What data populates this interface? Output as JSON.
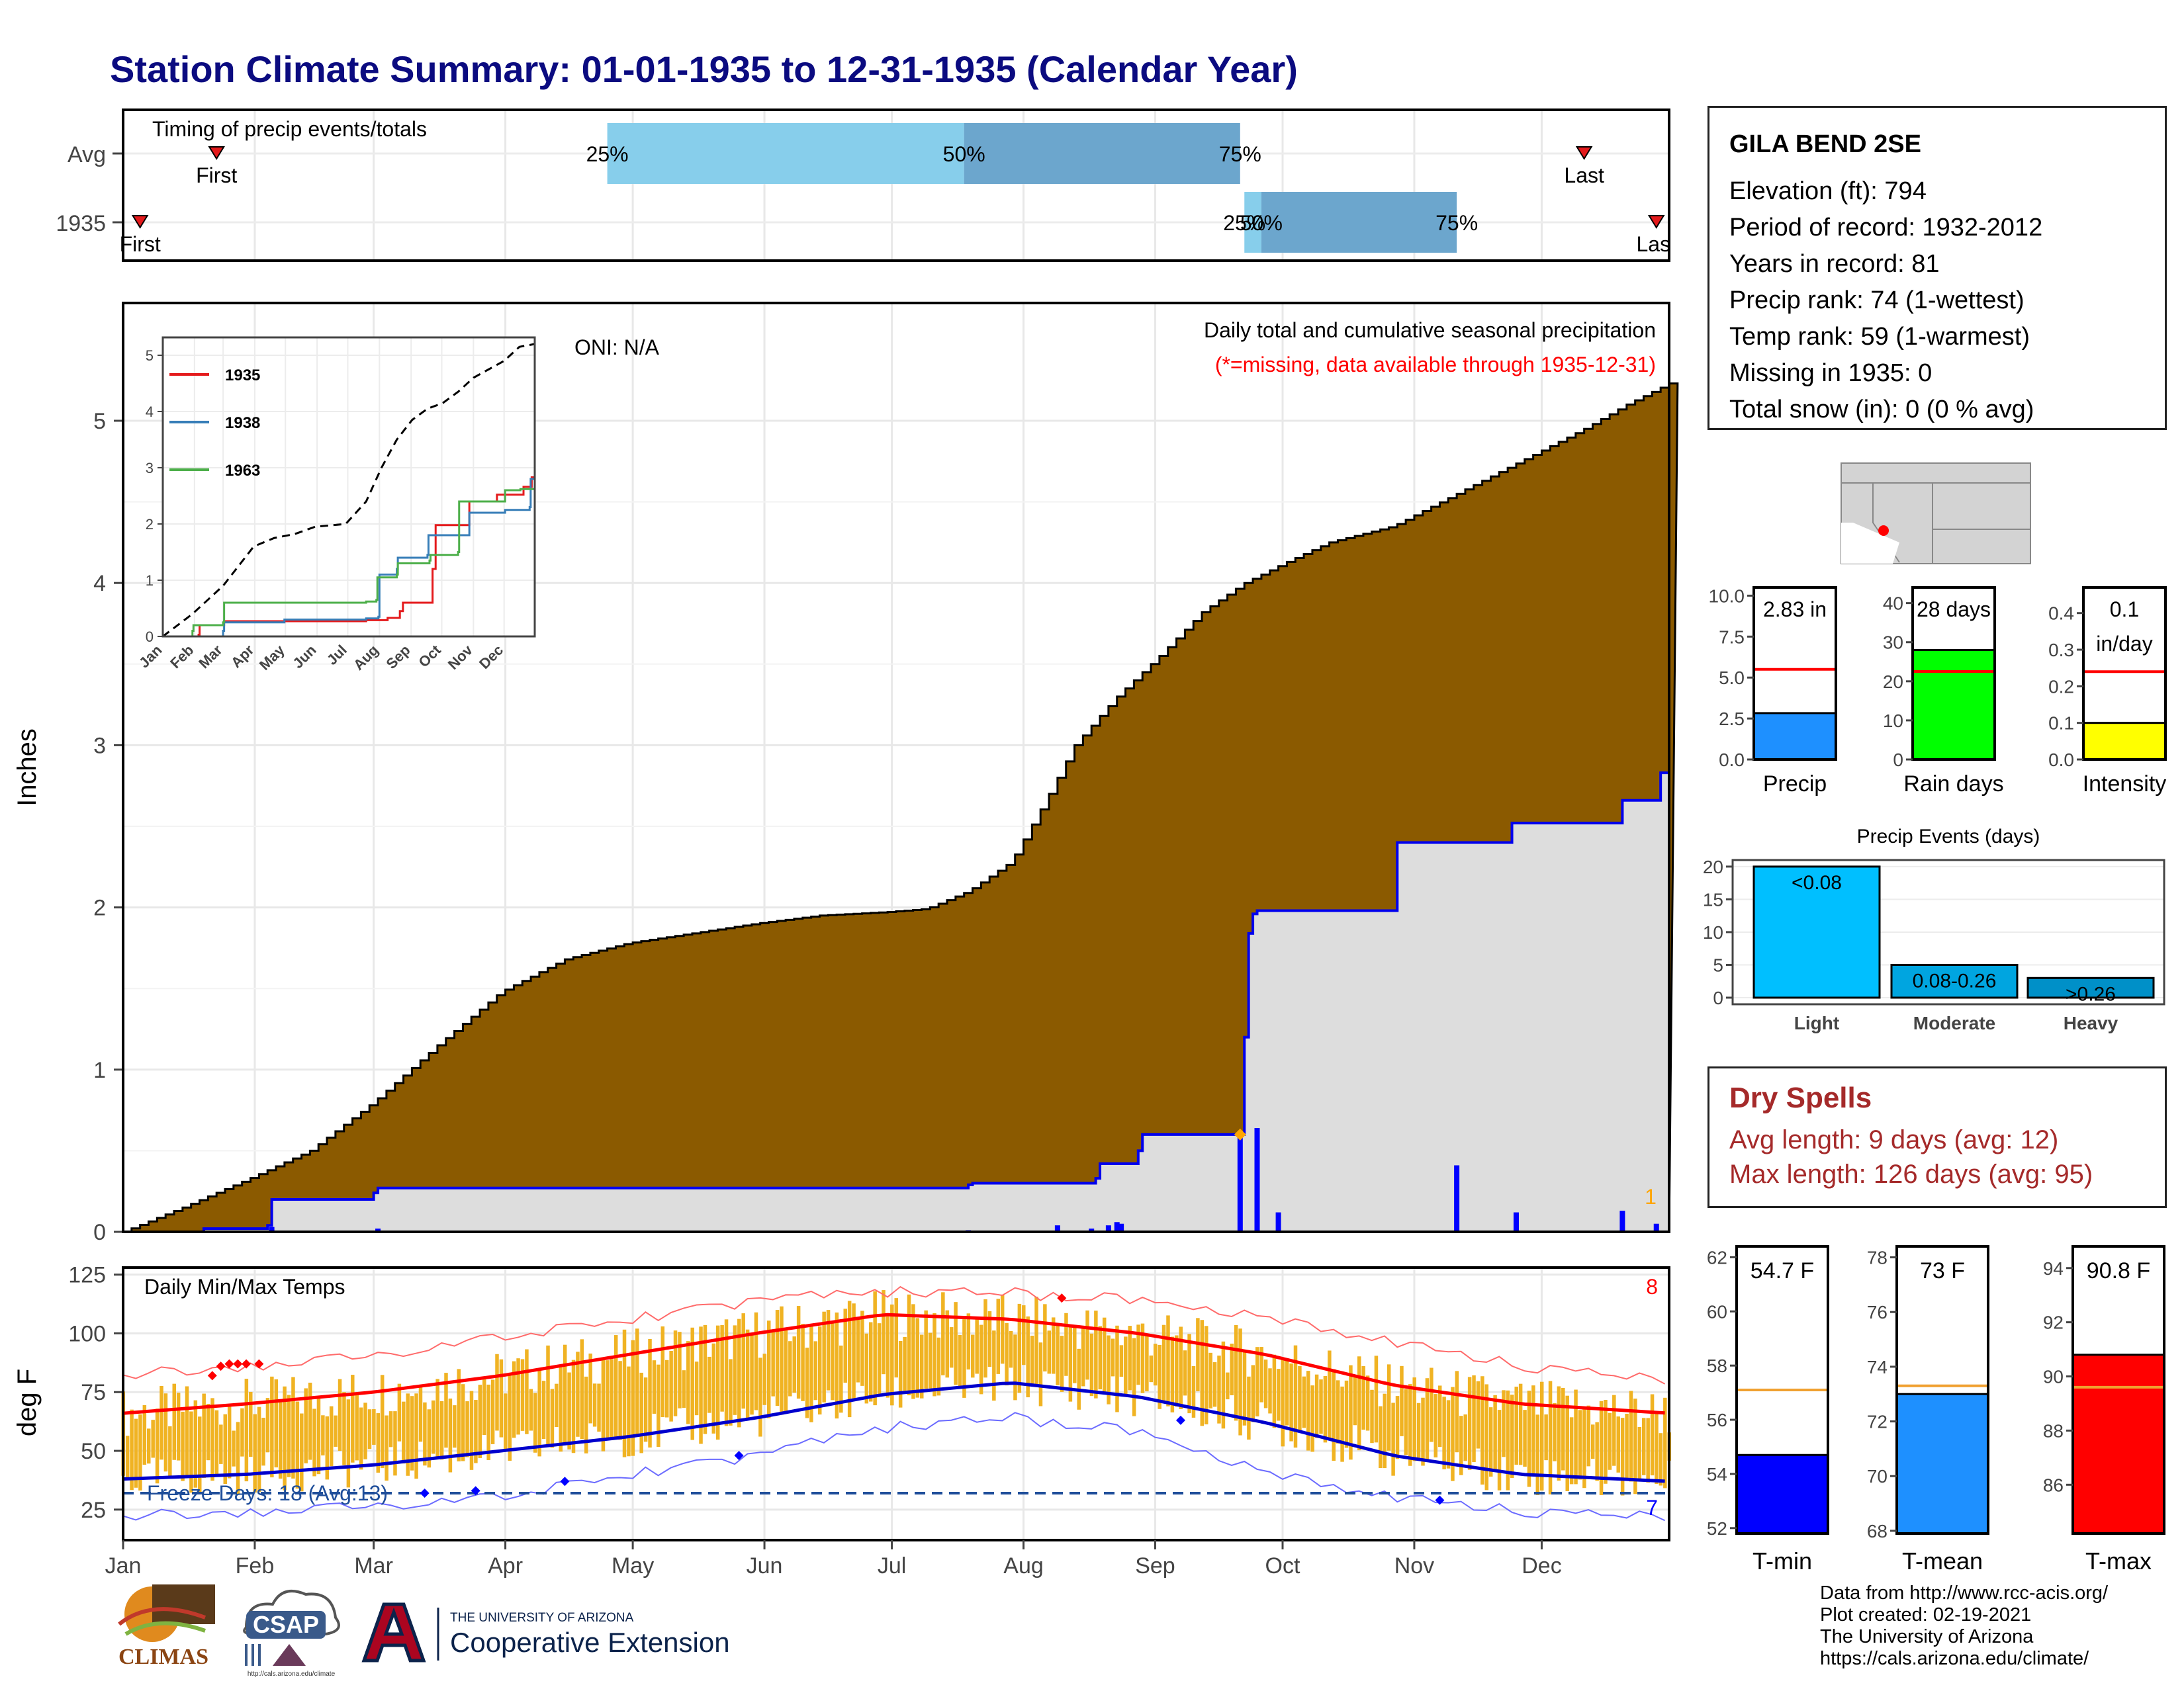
{
  "title": "Station Climate Summary: 01-01-1935 to 12-31-1935 (Calendar Year)",
  "timing": {
    "label": "Timing of precip events/totals",
    "rows": [
      {
        "name": "Avg",
        "first_doy": 23,
        "last_doy": 345,
        "p25_doy": 115,
        "p50_doy": 199,
        "p75_doy": 264,
        "first_label": "First",
        "last_label": "Last",
        "p25_label": "25%",
        "p50_label": "50%",
        "p75_label": "75%"
      },
      {
        "name": "1935",
        "first_doy": 5,
        "last_doy": 362,
        "p25_doy": 265,
        "p50_doy": 269,
        "p75_doy": 315,
        "first_label": "First",
        "last_label": "Last",
        "p25_label": "25%",
        "p50_label": "50%",
        "p75_label": "75%"
      }
    ]
  },
  "months": [
    "Jan",
    "Feb",
    "Mar",
    "Apr",
    "May",
    "Jun",
    "Jul",
    "Aug",
    "Sep",
    "Oct",
    "Nov",
    "Dec"
  ],
  "precip": {
    "ylabel": "Inches",
    "title_line1": "Daily total and cumulative seasonal precipitation",
    "title_line2": "(*=missing, data available through 1935-12-31)",
    "oni": "ONI: N/A",
    "count_label": "1",
    "y_ticks": [
      "0",
      "1",
      "2",
      "3",
      "4",
      "5"
    ]
  },
  "chart_data": [
    {
      "type": "area",
      "name": "cumulative precipitation",
      "units": "inches",
      "xlim": [
        1,
        365
      ],
      "ylim": [
        0,
        5.6
      ],
      "series": [
        {
          "name": "Average cumulative (max envelope)",
          "x": [
            1,
            15,
            30,
            45,
            60,
            75,
            90,
            105,
            120,
            135,
            150,
            165,
            180,
            190,
            200,
            210,
            218,
            225,
            235,
            245,
            255,
            265,
            275,
            285,
            300,
            315,
            330,
            345,
            355,
            365
          ],
          "values": [
            0,
            0.15,
            0.32,
            0.5,
            0.8,
            1.15,
            1.48,
            1.68,
            1.78,
            1.84,
            1.9,
            1.95,
            1.97,
            1.99,
            2.1,
            2.28,
            2.65,
            3.0,
            3.3,
            3.55,
            3.82,
            4.0,
            4.13,
            4.25,
            4.35,
            4.55,
            4.75,
            4.95,
            5.1,
            5.23
          ]
        },
        {
          "name": "1935",
          "x": [
            1,
            20,
            35,
            36,
            60,
            61,
            200,
            201,
            230,
            231,
            240,
            241,
            264,
            265,
            266,
            267,
            268,
            300,
            301,
            327,
            328,
            353,
            354,
            362,
            363,
            365
          ],
          "values": [
            0,
            0.02,
            0.04,
            0.2,
            0.24,
            0.27,
            0.29,
            0.3,
            0.33,
            0.42,
            0.5,
            0.6,
            0.6,
            1.2,
            1.84,
            1.96,
            1.98,
            1.98,
            2.4,
            2.4,
            2.52,
            2.52,
            2.66,
            2.66,
            2.83,
            2.83
          ]
        }
      ]
    },
    {
      "type": "bar",
      "name": "daily precipitation 1935",
      "units": "inches",
      "x": [
        36,
        61,
        200,
        221,
        229,
        233,
        235,
        236,
        264,
        268,
        273,
        315,
        329,
        354,
        362
      ],
      "values": [
        0.03,
        0.02,
        0.01,
        0.04,
        0.02,
        0.04,
        0.06,
        0.05,
        0.6,
        0.64,
        0.12,
        0.41,
        0.12,
        0.13,
        0.05
      ]
    },
    {
      "type": "line",
      "name": "inset cumulative precipitation",
      "xlim": [
        1,
        365
      ],
      "ylim": [
        0,
        5.2
      ],
      "y_ticks": [
        "0",
        "1",
        "2",
        "3",
        "4",
        "5"
      ],
      "series": [
        {
          "name": "avg",
          "x": [
            1,
            30,
            60,
            90,
            110,
            130,
            150,
            180,
            200,
            215,
            230,
            245,
            260,
            275,
            290,
            305,
            320,
            335,
            350,
            365
          ],
          "values": [
            0,
            0.4,
            0.9,
            1.6,
            1.75,
            1.82,
            1.95,
            2.0,
            2.4,
            3.0,
            3.5,
            3.85,
            4.05,
            4.15,
            4.35,
            4.6,
            4.75,
            4.9,
            5.15,
            5.2
          ]
        },
        {
          "name": "1935",
          "x": [
            1,
            36,
            37,
            61,
            200,
            221,
            233,
            236,
            264,
            265,
            268,
            300,
            301,
            327,
            328,
            354,
            362,
            365
          ],
          "values": [
            0,
            0.03,
            0.2,
            0.27,
            0.29,
            0.33,
            0.45,
            0.6,
            0.6,
            1.2,
            1.98,
            1.98,
            2.4,
            2.4,
            2.52,
            2.66,
            2.83,
            2.83
          ]
        },
        {
          "name": "1938",
          "x": [
            1,
            60,
            61,
            120,
            200,
            212,
            213,
            230,
            231,
            260,
            261,
            300,
            301,
            335,
            336,
            360,
            361,
            365
          ],
          "values": [
            0,
            0.1,
            0.25,
            0.3,
            0.32,
            0.35,
            1.1,
            1.2,
            1.4,
            1.45,
            1.8,
            1.8,
            2.2,
            2.2,
            2.25,
            2.3,
            2.8,
            2.8
          ]
        },
        {
          "name": "1963",
          "x": [
            1,
            30,
            31,
            60,
            61,
            200,
            210,
            211,
            230,
            231,
            262,
            263,
            290,
            291,
            335,
            336,
            350,
            351,
            365
          ],
          "values": [
            0,
            0.1,
            0.2,
            0.25,
            0.6,
            0.62,
            0.65,
            1.05,
            1.1,
            1.3,
            1.35,
            1.45,
            1.5,
            2.4,
            2.4,
            2.6,
            2.6,
            2.62,
            2.65
          ]
        }
      ]
    },
    {
      "type": "line",
      "name": "daily temperatures",
      "units": "deg F",
      "xlim": [
        1,
        365
      ],
      "ylim": [
        12,
        128
      ],
      "series": [
        {
          "name": "normal max",
          "x": [
            1,
            30,
            60,
            90,
            120,
            150,
            180,
            210,
            240,
            270,
            300,
            330,
            365
          ],
          "values": [
            66,
            70,
            75,
            82,
            91,
            100,
            108,
            106,
            100,
            91,
            78,
            70,
            66
          ]
        },
        {
          "name": "normal min",
          "x": [
            1,
            30,
            60,
            90,
            120,
            150,
            180,
            210,
            240,
            270,
            300,
            330,
            365
          ],
          "values": [
            38,
            40,
            44,
            50,
            56,
            64,
            74,
            79,
            73,
            62,
            48,
            40,
            37
          ]
        },
        {
          "name": "record high",
          "x": [
            1,
            30,
            60,
            90,
            120,
            150,
            180,
            210,
            240,
            270,
            300,
            330,
            365
          ],
          "values": [
            82,
            86,
            90,
            98,
            106,
            114,
            118,
            117,
            114,
            108,
            96,
            86,
            80
          ]
        },
        {
          "name": "record low",
          "x": [
            1,
            30,
            60,
            90,
            120,
            150,
            180,
            210,
            240,
            270,
            300,
            330,
            365
          ],
          "values": [
            22,
            24,
            26,
            30,
            40,
            48,
            60,
            64,
            58,
            42,
            30,
            24,
            22
          ]
        }
      ]
    },
    {
      "type": "bar",
      "name": "summary bars",
      "categories": [
        "Precip",
        "Rain days",
        "Intensity",
        "T-min",
        "T-mean",
        "T-max"
      ],
      "values": [
        2.83,
        28,
        0.1,
        54.7,
        73,
        90.8
      ],
      "averages": [
        5.5,
        22.5,
        0.24,
        57.1,
        73.3,
        89.6
      ]
    },
    {
      "type": "bar",
      "name": "Precip Events (days)",
      "categories": [
        "Light",
        "Moderate",
        "Heavy"
      ],
      "values": [
        20,
        5,
        3
      ]
    }
  ],
  "inset": {
    "legend": [
      {
        "name": "1935",
        "color": "#e41a1c"
      },
      {
        "name": "1938",
        "color": "#377eb8"
      },
      {
        "name": "1963",
        "color": "#4daf4a"
      }
    ]
  },
  "temps": {
    "ylabel": "deg F",
    "title": "Daily Min/Max Temps",
    "y_ticks": [
      "25",
      "50",
      "75",
      "100",
      "125"
    ],
    "freeze": "Freeze Days: 18 (Avg:13)",
    "count_top": "8",
    "count_bottom": "7"
  },
  "station": {
    "name": "GILA BEND 2SE",
    "lines": [
      "Elevation (ft): 794",
      "Period of record: 1932-2012",
      "Years in record: 81",
      "Precip rank: 74 (1-wettest)",
      "Temp rank: 59 (1-warmest)",
      "Missing in 1935: 0",
      "Total snow (in): 0 (0 % avg)"
    ]
  },
  "minibars": [
    {
      "label": "Precip",
      "value_text": "2.83 in",
      "ticks": [
        "0.0",
        "2.5",
        "5.0",
        "7.5",
        "10.0"
      ],
      "max": 10.5,
      "value": 2.83,
      "avg": 5.5,
      "color": "#1e90ff"
    },
    {
      "label": "Rain days",
      "value_text": "28 days",
      "ticks": [
        "0",
        "10",
        "20",
        "30",
        "40"
      ],
      "max": 44,
      "value": 28,
      "avg": 22.5,
      "color": "#00ff00"
    },
    {
      "label": "Intensity",
      "value_text": "0.1\nin/day",
      "ticks": [
        "0.0",
        "0.1",
        "0.2",
        "0.3",
        "0.4"
      ],
      "max": 0.47,
      "value": 0.1,
      "avg": 0.24,
      "color": "#ffff00"
    }
  ],
  "events": {
    "title": "Precip Events (days)",
    "ticks": [
      "0",
      "5",
      "10",
      "15",
      "20"
    ],
    "bars": [
      {
        "label": "Light",
        "text": "<0.08",
        "value": 20,
        "color": "#00bfff"
      },
      {
        "label": "Moderate",
        "text": "0.08-0.26",
        "value": 5,
        "color": "#00a5e0"
      },
      {
        "label": "Heavy",
        "text": ">0.26",
        "value": 3,
        "color": "#0090c8"
      }
    ]
  },
  "dry": {
    "title": "Dry Spells",
    "avg": "Avg length: 9 days (avg: 12)",
    "max": "Max length: 126 days (avg: 95)"
  },
  "tbars": [
    {
      "label": "T-min",
      "value_text": "54.7 F",
      "ticks": [
        "52",
        "54",
        "56",
        "58",
        "60",
        "62"
      ],
      "min": 51.8,
      "max": 62.4,
      "value": 54.7,
      "avg": 57.1,
      "color": "#0000ff"
    },
    {
      "label": "T-mean",
      "value_text": "73 F",
      "ticks": [
        "68",
        "70",
        "72",
        "74",
        "76",
        "78"
      ],
      "min": 67.9,
      "max": 78.4,
      "value": 73,
      "avg": 73.3,
      "color": "#1e90ff"
    },
    {
      "label": "T-max",
      "value_text": "90.8 F",
      "ticks": [
        "86",
        "88",
        "90",
        "92",
        "94"
      ],
      "min": 84.2,
      "max": 94.8,
      "value": 90.8,
      "avg": 89.6,
      "color": "#ff0000"
    }
  ],
  "credits": [
    "Data from http://www.rcc-acis.org/",
    "Plot created: 02-19-2021",
    "The University of Arizona",
    "https://cals.arizona.edu/climate/"
  ],
  "logos": {
    "climas": "CLIMAS",
    "csap": "CSAP",
    "csap_url": "http://cals.arizona.edu/climate",
    "ua_line1": "THE UNIVERSITY OF ARIZONA",
    "ua_line2": "Cooperative Extension"
  },
  "colors": {
    "title": "#0b0b80",
    "avg_area": "#8b5a00",
    "year_area": "#dddddd",
    "year_line": "#0000ee",
    "temp_bar": "#f0b323",
    "normal_max": "#ff0000",
    "normal_min": "#0000cc"
  }
}
